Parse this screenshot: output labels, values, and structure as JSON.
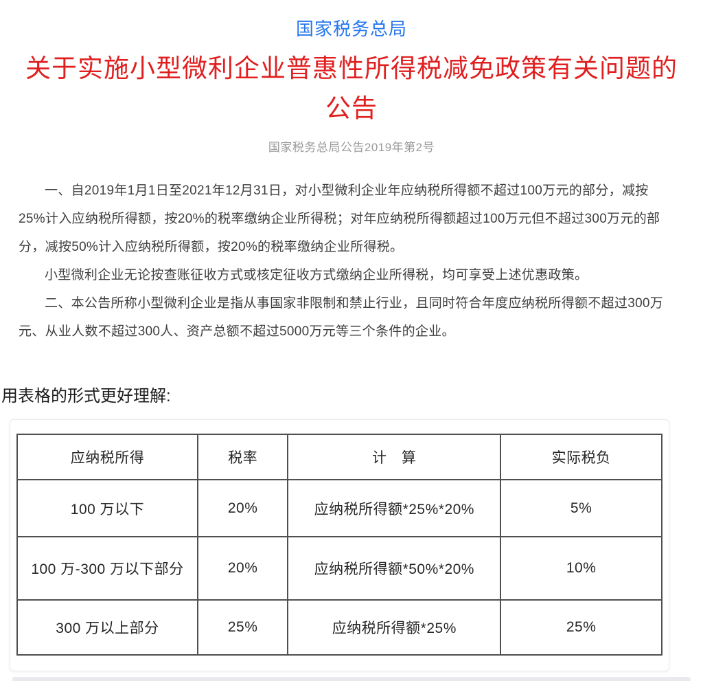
{
  "page": {
    "source_title": "国家税务总局",
    "title_line1": "关于实施小型微利企业普惠性所得税减免政策有关问题的",
    "title_line2": "公告",
    "doc_number": "国家税务总局公告2019年第2号",
    "paragraphs": [
      "一、自2019年1月1日至2021年12月31日，对小型微利企业年应纳税所得额不超过100万元的部分，减按25%计入应纳税所得额，按20%的税率缴纳企业所得税；对年应纳税所得额超过100万元但不超过300万元的部分，减按50%计入应纳税所得额，按20%的税率缴纳企业所得税。",
      "小型微利企业无论按查账征收方式或核定征收方式缴纳企业所得税，均可享受上述优惠政策。",
      "二、本公告所称小型微利企业是指从事国家非限制和禁止行业，且同时符合年度应纳税所得额不超过300万元、从业人数不超过300人、资产总额不超过5000万元等三个条件的企业。"
    ],
    "table_intro": "用表格的形式更好理解:"
  },
  "table": {
    "headers": [
      "应纳税所得",
      "税率",
      "计　算",
      "实际税负"
    ],
    "rows": [
      [
        "100 万以下",
        "20%",
        "应纳税所得额*25%*20%",
        "5%"
      ],
      [
        "100 万-300 万以下部分",
        "20%",
        "应纳税所得额*50%*20%",
        "10%"
      ],
      [
        "300 万以上部分",
        "25%",
        "应纳税所得额*25%",
        "25%"
      ]
    ]
  },
  "colors": {
    "link_blue": "#2777ee",
    "title_red": "#e02020",
    "doc_number_gray": "#9a9a9a",
    "body_text": "#3f3f3f",
    "table_border": "#4f4f4f"
  }
}
